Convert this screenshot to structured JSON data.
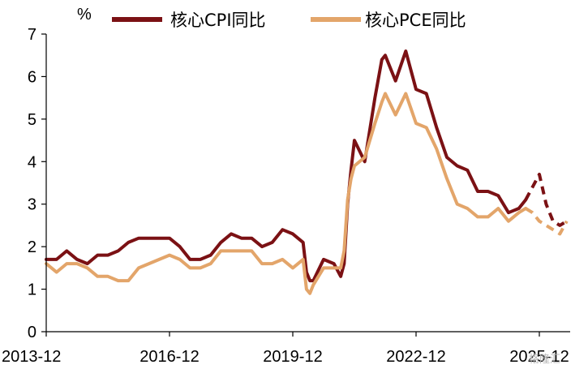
{
  "chart_data": {
    "type": "line",
    "ylabel": "%",
    "ylim": [
      0,
      7
    ],
    "yticks": [
      0,
      1,
      2,
      3,
      4,
      5,
      6,
      7
    ],
    "xlim": [
      "2013-12",
      "2026-09"
    ],
    "xticks": [
      "2013-12",
      "2016-12",
      "2019-12",
      "2022-12",
      "2025-12"
    ],
    "grid": false,
    "legend_position": "top",
    "series": [
      {
        "name": "核心CPI同比",
        "color": "#7b1114",
        "style": "solid-then-dashed",
        "dash_from": "2025-08",
        "points": [
          [
            "2013-12",
            1.7
          ],
          [
            "2014-03",
            1.7
          ],
          [
            "2014-06",
            1.9
          ],
          [
            "2014-09",
            1.7
          ],
          [
            "2014-12",
            1.6
          ],
          [
            "2015-03",
            1.8
          ],
          [
            "2015-06",
            1.8
          ],
          [
            "2015-09",
            1.9
          ],
          [
            "2015-12",
            2.1
          ],
          [
            "2016-03",
            2.2
          ],
          [
            "2016-06",
            2.2
          ],
          [
            "2016-09",
            2.2
          ],
          [
            "2016-12",
            2.2
          ],
          [
            "2017-03",
            2.0
          ],
          [
            "2017-06",
            1.7
          ],
          [
            "2017-09",
            1.7
          ],
          [
            "2017-12",
            1.8
          ],
          [
            "2018-03",
            2.1
          ],
          [
            "2018-06",
            2.3
          ],
          [
            "2018-09",
            2.2
          ],
          [
            "2018-12",
            2.2
          ],
          [
            "2019-03",
            2.0
          ],
          [
            "2019-06",
            2.1
          ],
          [
            "2019-09",
            2.4
          ],
          [
            "2019-12",
            2.3
          ],
          [
            "2020-03",
            2.1
          ],
          [
            "2020-04",
            1.4
          ],
          [
            "2020-05",
            1.2
          ],
          [
            "2020-06",
            1.2
          ],
          [
            "2020-09",
            1.7
          ],
          [
            "2020-12",
            1.6
          ],
          [
            "2021-02",
            1.3
          ],
          [
            "2021-03",
            1.6
          ],
          [
            "2021-04",
            3.0
          ],
          [
            "2021-05",
            3.8
          ],
          [
            "2021-06",
            4.5
          ],
          [
            "2021-09",
            4.0
          ],
          [
            "2021-12",
            5.5
          ],
          [
            "2022-02",
            6.4
          ],
          [
            "2022-03",
            6.5
          ],
          [
            "2022-06",
            5.9
          ],
          [
            "2022-09",
            6.6
          ],
          [
            "2022-12",
            5.7
          ],
          [
            "2023-03",
            5.6
          ],
          [
            "2023-06",
            4.8
          ],
          [
            "2023-09",
            4.1
          ],
          [
            "2023-12",
            3.9
          ],
          [
            "2024-03",
            3.8
          ],
          [
            "2024-06",
            3.3
          ],
          [
            "2024-09",
            3.3
          ],
          [
            "2024-12",
            3.2
          ],
          [
            "2025-03",
            2.8
          ],
          [
            "2025-06",
            2.9
          ],
          [
            "2025-08",
            3.1
          ],
          [
            "2025-10",
            3.4
          ],
          [
            "2025-12",
            3.7
          ],
          [
            "2026-02",
            3.0
          ],
          [
            "2026-04",
            2.6
          ],
          [
            "2026-06",
            2.5
          ],
          [
            "2026-08",
            2.6
          ]
        ]
      },
      {
        "name": "核心PCE同比",
        "color": "#e3a56a",
        "style": "solid-then-dashed",
        "dash_from": "2025-08",
        "points": [
          [
            "2013-12",
            1.6
          ],
          [
            "2014-03",
            1.4
          ],
          [
            "2014-06",
            1.6
          ],
          [
            "2014-09",
            1.6
          ],
          [
            "2014-12",
            1.5
          ],
          [
            "2015-03",
            1.3
          ],
          [
            "2015-06",
            1.3
          ],
          [
            "2015-09",
            1.2
          ],
          [
            "2015-12",
            1.2
          ],
          [
            "2016-03",
            1.5
          ],
          [
            "2016-06",
            1.6
          ],
          [
            "2016-09",
            1.7
          ],
          [
            "2016-12",
            1.8
          ],
          [
            "2017-03",
            1.7
          ],
          [
            "2017-06",
            1.5
          ],
          [
            "2017-09",
            1.5
          ],
          [
            "2017-12",
            1.6
          ],
          [
            "2018-03",
            1.9
          ],
          [
            "2018-06",
            1.9
          ],
          [
            "2018-09",
            1.9
          ],
          [
            "2018-12",
            1.9
          ],
          [
            "2019-03",
            1.6
          ],
          [
            "2019-06",
            1.6
          ],
          [
            "2019-09",
            1.7
          ],
          [
            "2019-12",
            1.5
          ],
          [
            "2020-03",
            1.7
          ],
          [
            "2020-04",
            1.0
          ],
          [
            "2020-05",
            0.9
          ],
          [
            "2020-06",
            1.1
          ],
          [
            "2020-09",
            1.5
          ],
          [
            "2020-12",
            1.5
          ],
          [
            "2021-02",
            1.5
          ],
          [
            "2021-03",
            1.9
          ],
          [
            "2021-04",
            3.1
          ],
          [
            "2021-05",
            3.6
          ],
          [
            "2021-06",
            3.9
          ],
          [
            "2021-09",
            4.1
          ],
          [
            "2021-12",
            4.9
          ],
          [
            "2022-02",
            5.4
          ],
          [
            "2022-03",
            5.6
          ],
          [
            "2022-06",
            5.1
          ],
          [
            "2022-09",
            5.6
          ],
          [
            "2022-12",
            4.9
          ],
          [
            "2023-03",
            4.8
          ],
          [
            "2023-06",
            4.3
          ],
          [
            "2023-09",
            3.6
          ],
          [
            "2023-12",
            3.0
          ],
          [
            "2024-03",
            2.9
          ],
          [
            "2024-06",
            2.7
          ],
          [
            "2024-09",
            2.7
          ],
          [
            "2024-12",
            2.9
          ],
          [
            "2025-03",
            2.6
          ],
          [
            "2025-06",
            2.8
          ],
          [
            "2025-08",
            2.9
          ],
          [
            "2025-10",
            2.8
          ],
          [
            "2025-12",
            2.6
          ],
          [
            "2026-02",
            2.5
          ],
          [
            "2026-04",
            2.4
          ],
          [
            "2026-06",
            2.3
          ],
          [
            "2026-08",
            2.6
          ]
        ]
      }
    ]
  }
}
